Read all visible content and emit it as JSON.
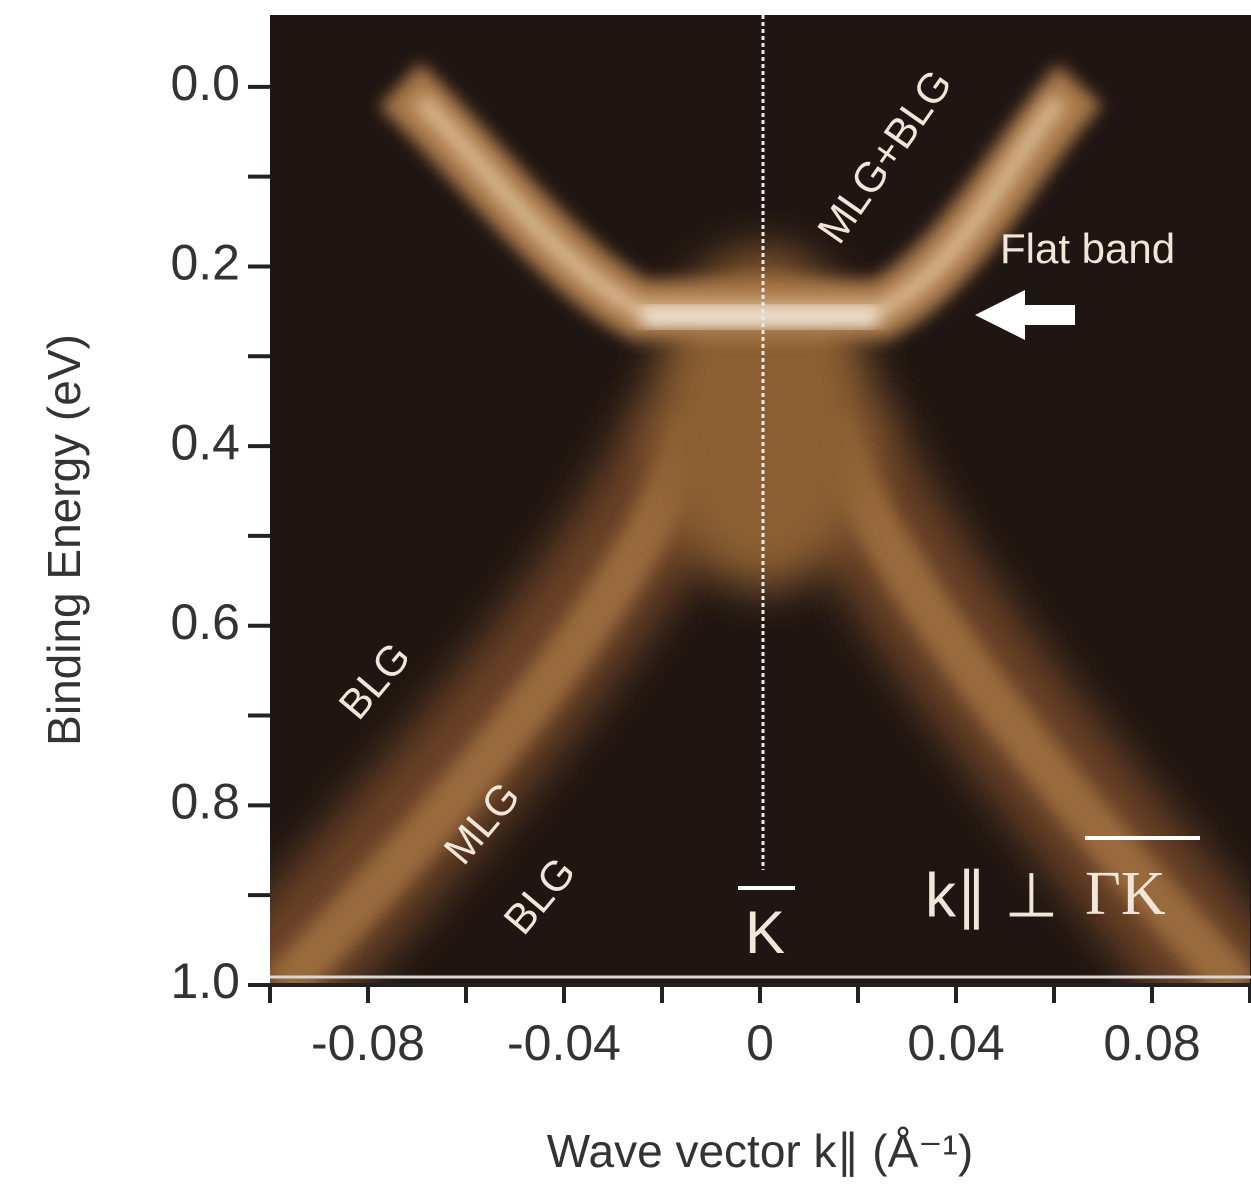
{
  "chart_data": {
    "type": "intensity-map",
    "y_label": "Binding Energy (eV)",
    "x_label": "Wave vector k∥ (Å⁻¹)",
    "xlim": [
      -0.1,
      0.1
    ],
    "xticks": [
      -0.08,
      -0.04,
      0,
      0.04,
      0.08
    ],
    "x_minor_ticks": [
      -0.1,
      -0.06,
      -0.02,
      0.02,
      0.06,
      0.1
    ],
    "ylim": [
      -0.08,
      1.0
    ],
    "y_inverted": true,
    "yticks": [
      {
        "value": 0,
        "label": "0.0"
      },
      {
        "value": 0.2,
        "label": "0.2"
      },
      {
        "value": 0.4,
        "label": "0.4"
      },
      {
        "value": 0.6,
        "label": "0.6"
      },
      {
        "value": 0.8,
        "label": "0.8"
      },
      {
        "value": 1.0,
        "label": "1.0"
      }
    ],
    "y_minor_ticks": [
      0.1,
      0.3,
      0.5,
      0.7,
      0.9
    ],
    "annotations": {
      "mlg_blg": "MLG+BLG",
      "flat_band": "Flat band",
      "blg_upper": "BLG",
      "mlg": "MLG",
      "blg_lower": "BLG",
      "k_point": "K",
      "direction": "k∥ ⊥",
      "direction_path": "ΓK"
    }
  }
}
